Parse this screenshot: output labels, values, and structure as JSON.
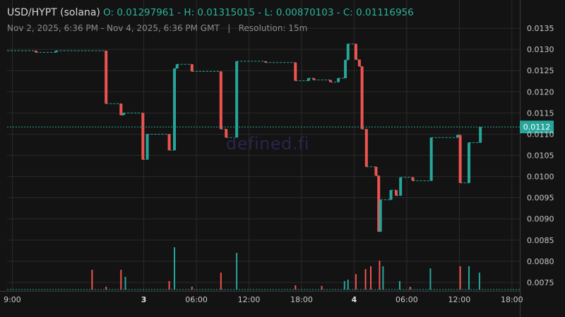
{
  "header": {
    "symbol": "USD/HYPT (solana)",
    "ohlc": "O: 0.01297961 - H: 0.01315015 - L: 0.00870103 - C: 0.01116956",
    "range": "Nov 2, 2025, 6:36 PM - Nov 4, 2025, 6:36 PM GMT",
    "separator": "|",
    "resolution": "Resolution: 15m"
  },
  "watermark": "defined.fi",
  "colors": {
    "background": "#131313",
    "grid": "#2a2a2a",
    "up": "#26a69a",
    "down": "#ef5350",
    "text": "#c8c8c8",
    "price_tag": "#26a69a"
  },
  "chart_data": {
    "type": "candlestick",
    "title": "USD/HYPT (solana)",
    "y_axis": {
      "ticks": [
        "0.0135",
        "0.0130",
        "0.0125",
        "0.0120",
        "0.0115",
        "0.0110",
        "0.0105",
        "0.0100",
        "0.0095",
        "0.0090",
        "0.0085",
        "0.0080",
        "0.0075"
      ],
      "ylim": [
        0.0073,
        0.014
      ],
      "side": "right"
    },
    "x_axis": {
      "ticks": [
        "9:00",
        "3",
        "06:00",
        "12:00",
        "18:00",
        "4",
        "06:00",
        "12:00",
        "18:00"
      ],
      "tick_hours": [
        0,
        15,
        21,
        27,
        33,
        39,
        45,
        51,
        57
      ],
      "xlim": [
        -0.6,
        57.9
      ],
      "bold_ticks": [
        "3",
        "4"
      ]
    },
    "current_price_label": "0.0112",
    "current_price": 0.01117,
    "candles": [
      {
        "t": 2.7,
        "o": 0.01297,
        "c": 0.01293
      },
      {
        "t": 5.0,
        "o": 0.01293,
        "c": 0.01297
      },
      {
        "t": 10.7,
        "o": 0.01297,
        "c": 0.01172
      },
      {
        "t": 12.4,
        "o": 0.01172,
        "c": 0.01145
      },
      {
        "t": 12.7,
        "o": 0.01145,
        "c": 0.0115
      },
      {
        "t": 14.9,
        "o": 0.0115,
        "c": 0.0104
      },
      {
        "t": 15.4,
        "o": 0.0104,
        "c": 0.011
      },
      {
        "t": 17.9,
        "o": 0.011,
        "c": 0.01062
      },
      {
        "t": 18.5,
        "o": 0.01062,
        "c": 0.01255
      },
      {
        "t": 18.8,
        "o": 0.01255,
        "c": 0.01265
      },
      {
        "t": 20.5,
        "o": 0.01265,
        "c": 0.01248
      },
      {
        "t": 23.8,
        "o": 0.01248,
        "c": 0.01112
      },
      {
        "t": 24.4,
        "o": 0.01112,
        "c": 0.01092
      },
      {
        "t": 25.6,
        "o": 0.01092,
        "c": 0.01272
      },
      {
        "t": 28.9,
        "o": 0.01272,
        "c": 0.01269
      },
      {
        "t": 32.3,
        "o": 0.01269,
        "c": 0.01226
      },
      {
        "t": 33.8,
        "o": 0.01226,
        "c": 0.01232
      },
      {
        "t": 34.4,
        "o": 0.01232,
        "c": 0.01228
      },
      {
        "t": 36.3,
        "o": 0.01228,
        "c": 0.01223
      },
      {
        "t": 37.2,
        "o": 0.01223,
        "c": 0.01232
      },
      {
        "t": 38.0,
        "o": 0.01232,
        "c": 0.01275
      },
      {
        "t": 38.3,
        "o": 0.01275,
        "c": 0.01313
      },
      {
        "t": 39.2,
        "o": 0.01313,
        "c": 0.01276
      },
      {
        "t": 39.6,
        "o": 0.01276,
        "c": 0.0126
      },
      {
        "t": 39.9,
        "o": 0.0126,
        "c": 0.01112
      },
      {
        "t": 40.4,
        "o": 0.01112,
        "c": 0.01023
      },
      {
        "t": 41.5,
        "o": 0.01023,
        "c": 0.01002
      },
      {
        "t": 41.8,
        "o": 0.01002,
        "c": 0.0087
      },
      {
        "t": 42.0,
        "o": 0.0087,
        "c": 0.00945
      },
      {
        "t": 43.2,
        "o": 0.00945,
        "c": 0.00968
      },
      {
        "t": 43.8,
        "o": 0.00968,
        "c": 0.00955
      },
      {
        "t": 44.3,
        "o": 0.00955,
        "c": 0.00998
      },
      {
        "t": 45.7,
        "o": 0.00998,
        "c": 0.0099
      },
      {
        "t": 47.8,
        "o": 0.0099,
        "c": 0.01092
      },
      {
        "t": 50.8,
        "o": 0.01092,
        "c": 0.01098
      },
      {
        "t": 51.1,
        "o": 0.01098,
        "c": 0.00985
      },
      {
        "t": 52.1,
        "o": 0.00985,
        "c": 0.0108
      },
      {
        "t": 53.4,
        "o": 0.0108,
        "c": 0.01117
      }
    ],
    "volume": [
      {
        "t": 9.1,
        "v": 28,
        "up": false
      },
      {
        "t": 10.7,
        "v": 4,
        "up": false
      },
      {
        "t": 12.4,
        "v": 28,
        "up": false
      },
      {
        "t": 12.9,
        "v": 18,
        "up": true
      },
      {
        "t": 17.9,
        "v": 12,
        "up": false
      },
      {
        "t": 18.5,
        "v": 60,
        "up": true
      },
      {
        "t": 20.5,
        "v": 4,
        "up": false
      },
      {
        "t": 23.8,
        "v": 24,
        "up": false
      },
      {
        "t": 25.6,
        "v": 52,
        "up": true
      },
      {
        "t": 32.3,
        "v": 6,
        "up": false
      },
      {
        "t": 35.3,
        "v": 5,
        "up": false
      },
      {
        "t": 37.9,
        "v": 12,
        "up": true
      },
      {
        "t": 38.3,
        "v": 14,
        "up": true
      },
      {
        "t": 39.2,
        "v": 22,
        "up": false
      },
      {
        "t": 40.3,
        "v": 29,
        "up": false
      },
      {
        "t": 40.9,
        "v": 33,
        "up": false
      },
      {
        "t": 41.9,
        "v": 41,
        "up": false
      },
      {
        "t": 42.3,
        "v": 33,
        "up": true
      },
      {
        "t": 44.2,
        "v": 12,
        "up": true
      },
      {
        "t": 45.4,
        "v": 4,
        "up": false
      },
      {
        "t": 47.7,
        "v": 30,
        "up": true
      },
      {
        "t": 51.1,
        "v": 33,
        "up": false
      },
      {
        "t": 52.1,
        "v": 33,
        "up": true
      },
      {
        "t": 53.3,
        "v": 24,
        "up": true
      }
    ]
  }
}
